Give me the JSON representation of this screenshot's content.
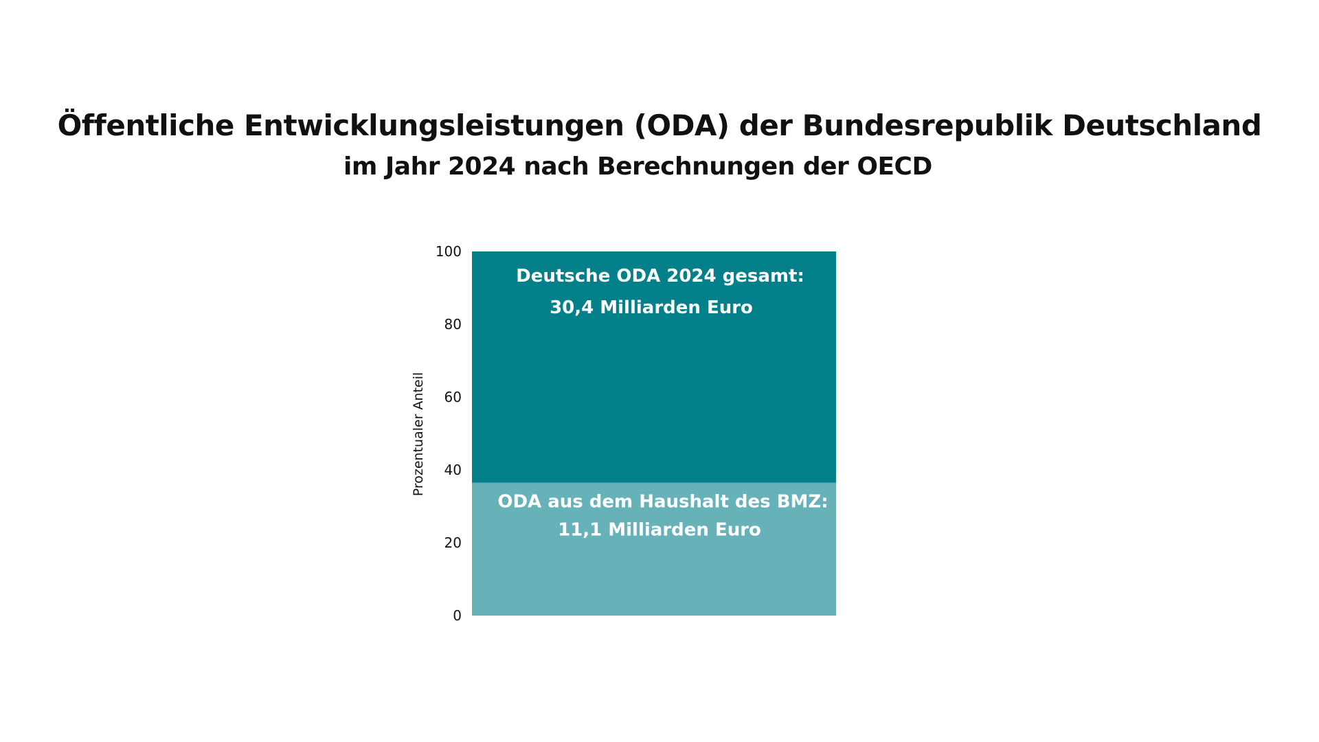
{
  "title": "Öffentliche Entwicklungsleistungen (ODA) der Bundesrepublik Deutschland",
  "subtitle": "im Jahr 2024 nach Berechnungen der OECD",
  "chart_data": {
    "type": "bar",
    "stacked": true,
    "ylabel": "Prozentualer Anteil",
    "ylim": [
      0,
      100
    ],
    "yticks": [
      "0",
      "20",
      "40",
      "60",
      "80",
      "100"
    ],
    "grid": false,
    "series": [
      {
        "value": 36.5,
        "color": "#67b2b8",
        "label_line1": "ODA aus dem Haushalt des BMZ:",
        "label_line2": "11,1 Milliarden Euro"
      },
      {
        "value": 63.5,
        "color": "#03808a",
        "label_line1": "Deutsche ODA 2024 gesamt:",
        "label_line2": "30,4 Milliarden Euro"
      }
    ]
  }
}
